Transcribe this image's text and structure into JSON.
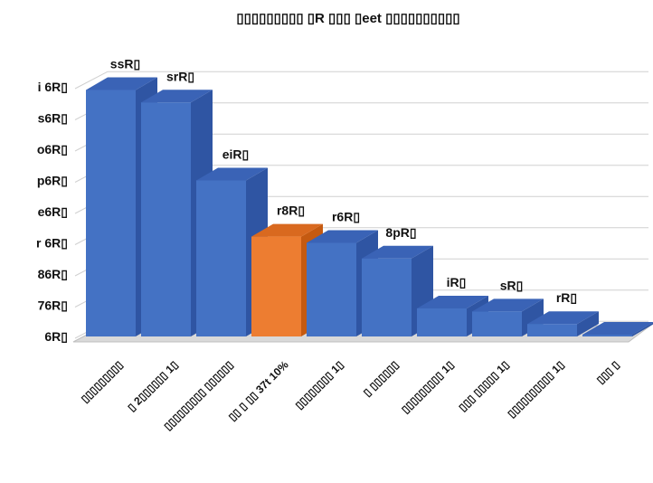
{
  "chart_data": {
    "type": "bar",
    "style": "3d-column",
    "title": "▯▯▯▯▯▯▯▯▯ ▯R ▯▯▯ ▯eet ▯▯▯▯▯▯▯▯▯▯",
    "y_tick_labels": [
      "6R▯",
      "76R▯",
      "86R▯",
      "r 6R▯",
      "e6R▯",
      "p6R▯",
      "o6R▯",
      "s6R▯",
      "i 6R▯"
    ],
    "ylim": [
      0,
      8
    ],
    "grid": true,
    "legend": "none",
    "categories": [
      "▯▯▯▯▯▯▯▯▯",
      "▯ 2▯▯▯▯▯▯ 1▯",
      "▯▯▯▯▯▯▯▯▯ ▯▯▯▯▯▯",
      "▯▯ ▯ ▯▯ 37t 10%",
      "▯▯▯▯▯▯▯▯ 1▯",
      "▯ ▯▯▯▯▯▯",
      "▯▯▯▯▯▯▯▯▯ 1▯",
      "▯▯▯ ▯▯▯▯▯ 1▯",
      "▯▯▯▯▯▯▯▯▯▯ 1▯",
      "▯▯▯ ▯"
    ],
    "values": [
      7.9,
      7.5,
      5.0,
      3.2,
      3.0,
      2.5,
      0.9,
      0.8,
      0.4,
      0.0
    ],
    "data_labels": [
      "ssR▯",
      "srR▯",
      "eiR▯",
      "r8R▯",
      "r6R▯",
      "8pR▯",
      "iR▯",
      "sR▯",
      "rR▯",
      ""
    ],
    "highlight_index": 3,
    "colors": {
      "bar_front": "#4472c4",
      "bar_side": "#2f55a3",
      "bar_top": "#3a63b6",
      "highlight_front": "#ed7d31",
      "highlight_side": "#c55a11",
      "highlight_top": "#d9691f",
      "grid": "#d0d0d0",
      "floor": "#d9d9d9"
    }
  }
}
